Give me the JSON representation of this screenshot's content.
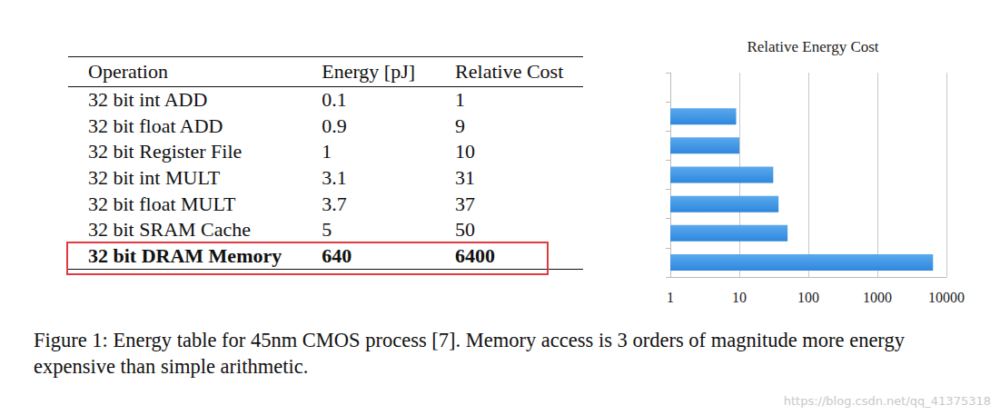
{
  "table": {
    "header": [
      "Operation",
      "Energy [pJ]",
      "Relative Cost"
    ],
    "rows": [
      {
        "cells": [
          "32 bit int ADD",
          0.1,
          1
        ]
      },
      {
        "cells": [
          "32 bit float ADD",
          0.9,
          9
        ]
      },
      {
        "cells": [
          "32 bit Register File",
          1,
          10
        ]
      },
      {
        "cells": [
          "32 bit int MULT",
          3.1,
          31
        ]
      },
      {
        "cells": [
          "32 bit float MULT",
          3.7,
          37
        ]
      },
      {
        "cells": [
          "32 bit SRAM Cache",
          5,
          50
        ]
      },
      {
        "cells": [
          "32 bit DRAM Memory",
          640,
          6400
        ],
        "highlighted": true
      }
    ]
  },
  "chart_data": {
    "type": "bar",
    "title": "Relative Energy Cost",
    "orientation": "horizontal",
    "log": "x",
    "grid": true,
    "tick_labels": "x",
    "categories": [
      null,
      null,
      null,
      null,
      null,
      null,
      null
    ],
    "values": [
      1,
      9,
      10,
      31,
      37,
      50,
      6400
    ],
    "color": "#2f87dc",
    "xlim": [
      1,
      10000
    ],
    "xticks": [
      1,
      10,
      100,
      1000,
      10000
    ]
  },
  "caption": "Figure 1: Energy table for 45nm CMOS process [7]. Memory access is 3 orders of magnitude more energy expensive than simple arithmetic.",
  "watermark": "https://blog.csdn.net/qq_41375318"
}
